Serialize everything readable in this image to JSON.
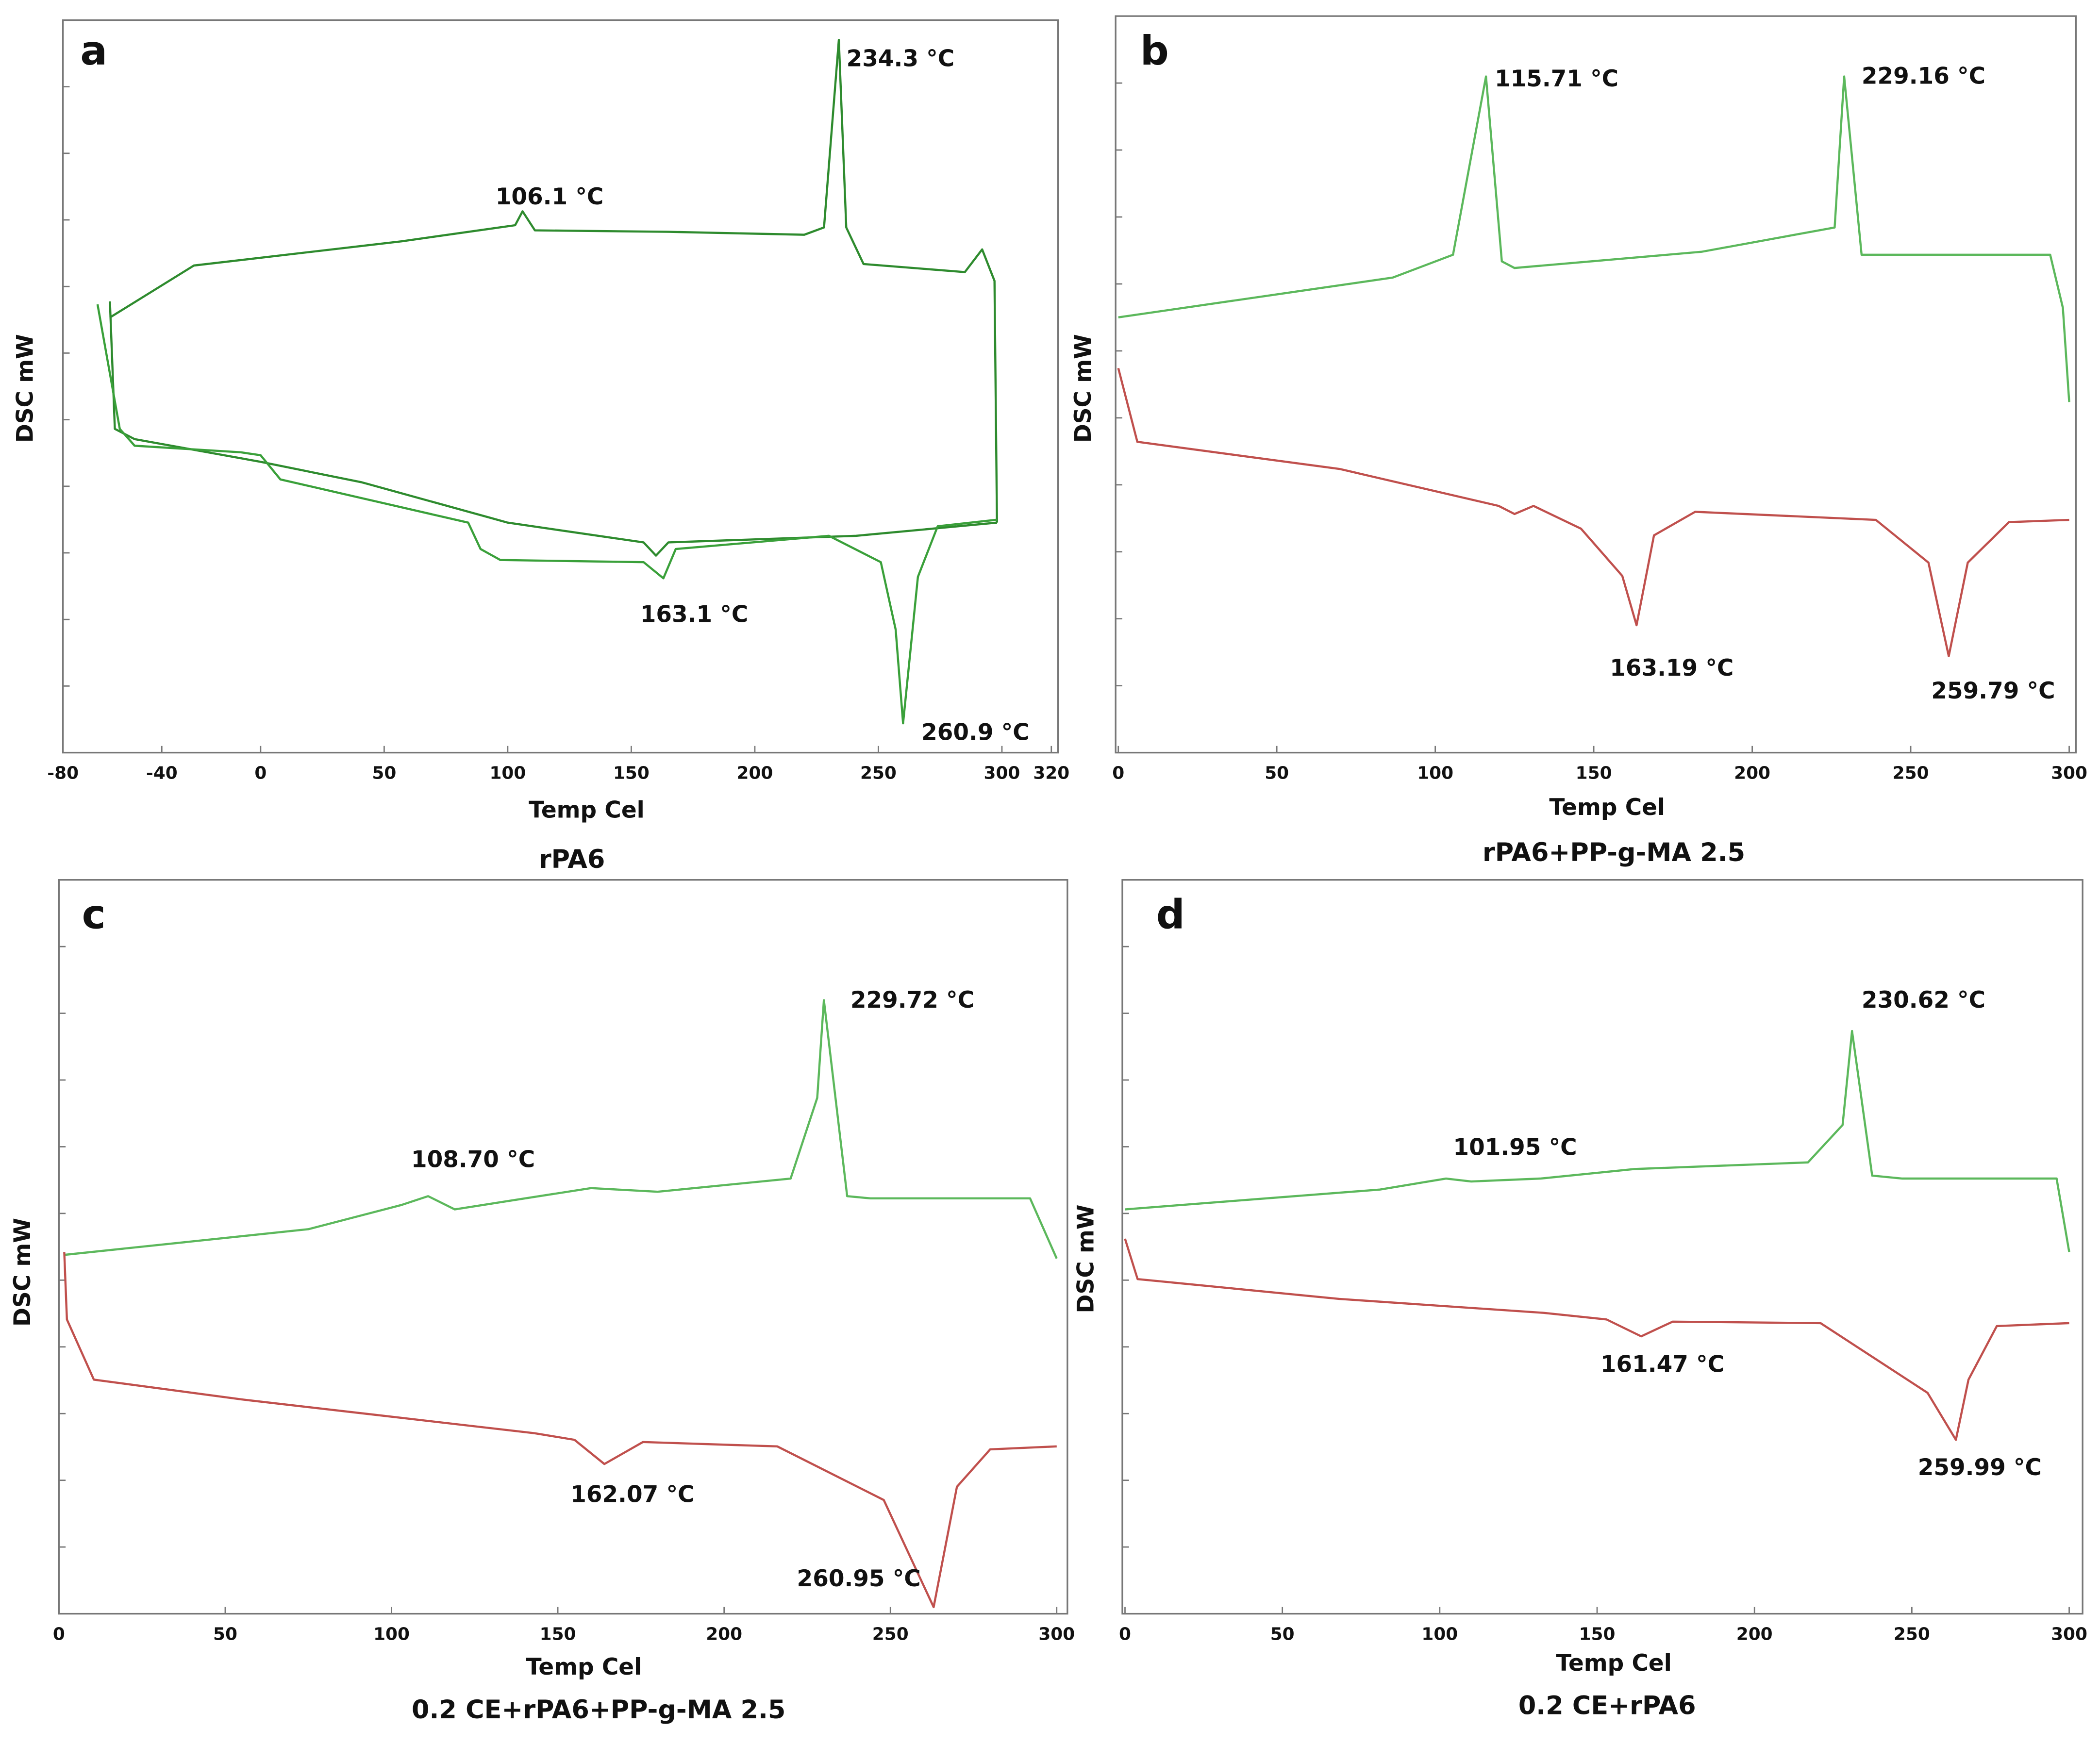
{
  "chart_data": [
    {
      "type": "line",
      "label": "a",
      "title": "rPA6",
      "x_label": "Temp Cel",
      "y_label": "DSC mW",
      "xlim": [
        -80,
        320
      ],
      "xticks": [
        -80,
        -40,
        0,
        50,
        100,
        150,
        200,
        250,
        300,
        320
      ],
      "ylim": [
        0,
        100
      ],
      "series": [
        {
          "color": "#2e8b2e",
          "x": [
            -61,
            -27,
            57,
            103,
            106,
            111,
            165,
            220,
            228,
            234,
            237,
            244,
            285,
            292,
            297,
            298
          ],
          "values": [
            59.4,
            66.5,
            69.8,
            72,
            73.9,
            71.3,
            71.1,
            70.7,
            71.7,
            97.3,
            71.7,
            66.7,
            65.6,
            68.7,
            64.4,
            31.4
          ]
        },
        {
          "color": "#2e8b2e",
          "x": [
            298,
            241,
            165,
            160,
            155,
            100,
            41,
            0,
            -51,
            -59,
            -61
          ],
          "values": [
            31.4,
            29.6,
            28.7,
            26.9,
            28.7,
            31.4,
            36.9,
            39.7,
            42.8,
            44.2,
            61.6
          ]
        },
        {
          "color": "#3aa03a",
          "x": [
            -66,
            -57,
            -51,
            -8,
            0,
            8,
            84,
            89,
            97,
            155,
            163,
            168,
            230,
            251,
            257,
            260,
            266,
            274,
            298
          ],
          "values": [
            61.2,
            44.2,
            41.9,
            41,
            40.6,
            37.3,
            31.4,
            27.8,
            26.3,
            26,
            23.8,
            27.8,
            29.6,
            26,
            16.8,
            4,
            24,
            30.9,
            31.8
          ]
        }
      ],
      "annotations": [
        "234.3 °C",
        "106.1 °C",
        "163.1 °C",
        "260.9 °C"
      ]
    },
    {
      "type": "line",
      "label": "b",
      "title": "rPA6+PP-g-MA 2.5",
      "x_label": "Temp Cel",
      "y_label": "DSC mW",
      "xlim": [
        0,
        300
      ],
      "xticks": [
        0,
        50,
        100,
        150,
        200,
        250,
        300
      ],
      "ylim": [
        0,
        100
      ],
      "series": [
        {
          "color": "#5cb85c",
          "x": [
            0,
            86.6,
            105.6,
            116,
            121,
            125,
            184,
            226,
            229,
            234.5,
            294,
            298,
            300
          ],
          "values": [
            59.1,
            64.5,
            67.6,
            91.8,
            66.7,
            65.8,
            68,
            71.3,
            91.8,
            67.6,
            67.6,
            60.4,
            47.6
          ]
        },
        {
          "color": "#c0504d",
          "x": [
            0,
            6,
            70,
            120,
            125,
            131,
            146,
            159,
            163.5,
            169,
            182,
            239,
            255.6,
            262,
            268,
            281,
            300
          ],
          "values": [
            52.2,
            42.2,
            38.5,
            33.5,
            32.4,
            33.5,
            30.4,
            24,
            17.3,
            29.5,
            32.7,
            31.6,
            25.8,
            13.1,
            25.8,
            31.3,
            31.6
          ]
        }
      ],
      "annotations": [
        "115.71 °C",
        "229.16 °C",
        "163.19 °C",
        "259.79 °C"
      ]
    },
    {
      "type": "line",
      "label": "c",
      "title": "0.2 CE+rPA6+PP-g-MA 2.5",
      "x_label": "Temp Cel",
      "y_label": "DSC mW",
      "xlim": [
        0,
        300
      ],
      "xticks": [
        0,
        50,
        100,
        150,
        200,
        250,
        300
      ],
      "ylim": [
        0,
        100
      ],
      "series": [
        {
          "color": "#5cb85c",
          "x": [
            1.6,
            75,
            103,
            111,
            119,
            160,
            180,
            220,
            228,
            230,
            237,
            244,
            292,
            300
          ],
          "values": [
            48.9,
            52.4,
            55.7,
            56.9,
            55.1,
            58,
            57.5,
            59.3,
            70.3,
            83.6,
            56.9,
            56.6,
            56.6,
            48.4
          ]
        },
        {
          "color": "#c0504d",
          "x": [
            1.6,
            2.4,
            10.5,
            55,
            143,
            155,
            164,
            175.6,
            216,
            248,
            263,
            270,
            280,
            300
          ],
          "values": [
            49.3,
            40.1,
            31.9,
            29.2,
            24.6,
            23.7,
            20.4,
            23.4,
            22.8,
            15.5,
            0.9,
            17.3,
            22.4,
            22.8
          ]
        }
      ],
      "annotations": [
        "229.72 °C",
        "108.70 °C",
        "162.07 °C",
        "260.95 °C"
      ]
    },
    {
      "type": "line",
      "label": "d",
      "title": "0.2 CE+rPA6",
      "x_label": "Temp Cel",
      "y_label": "DSC mW",
      "xlim": [
        0,
        300
      ],
      "xticks": [
        0,
        50,
        100,
        150,
        200,
        250,
        300
      ],
      "ylim": [
        0,
        100
      ],
      "series": [
        {
          "color": "#5cb85c",
          "x": [
            0,
            81,
            102,
            110,
            132,
            162,
            217,
            228,
            231,
            237.4,
            247,
            296,
            300
          ],
          "values": [
            55.1,
            57.8,
            59.3,
            58.9,
            59.3,
            60.6,
            61.5,
            66.6,
            79.4,
            59.7,
            59.3,
            59.3,
            49.3
          ]
        },
        {
          "color": "#c0504d",
          "x": [
            0,
            4,
            68,
            133,
            153,
            164,
            174,
            221,
            255,
            264,
            268,
            277,
            300
          ],
          "values": [
            51.1,
            45.6,
            42.9,
            41,
            40.1,
            37.8,
            39.8,
            39.6,
            30.1,
            23.7,
            31.9,
            39.2,
            39.6
          ]
        }
      ],
      "annotations": [
        "230.62 °C",
        "101.95 °C",
        "161.47 °C",
        "259.99 °C"
      ]
    }
  ]
}
